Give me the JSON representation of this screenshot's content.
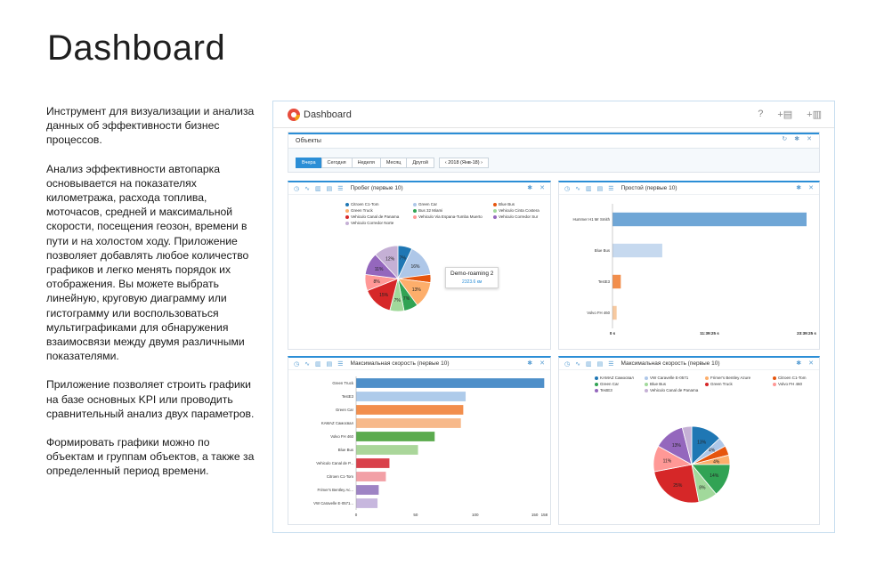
{
  "page": {
    "title": "Dashboard",
    "paragraphs": [
      "Инструмент для визуализации и анализа данных об эффективности бизнес процессов.",
      "Анализ эффективности автопарка основывается на показателях километража, расхода топлива, моточасов, средней и максимальной скорости, посещения геозон, времени в пути и на холостом ходу. Приложение позволяет добавлять любое количество графиков и легко менять порядок их отображения. Вы можете выбрать линейную, круговую диаграмму или гистограмму или воспользоваться мультиграфиками для обнаружения взаимосвязи между двумя различными показателями.",
      "Приложение позволяет строить графики на базе основных KPI или проводить сравнительный анализ двух параметров.",
      "Формировать графики можно по объектам и группам объектов, а также за определенный период времени."
    ]
  },
  "app": {
    "title": "Dashboard",
    "header_icons": [
      "help-icon",
      "add-chart-icon",
      "add-multichart-icon"
    ],
    "objects_panel": {
      "title": "Объекты",
      "tabs": [
        "Вчера",
        "Сегодня",
        "Неделя",
        "Месяц",
        "Другой"
      ],
      "active_tab": "Вчера",
      "date": "‹ 2018 (Янв-18) ›"
    }
  },
  "colors": {
    "accent": "#2b8ed6"
  },
  "chart_data": [
    {
      "type": "pie",
      "title": "Пробег (первые 10)",
      "legend": [
        "Citroen C1-Tom",
        "Green Car",
        "Blue Bus",
        "Green Truck",
        "Bus 32 Miami",
        "Vehiculo Cinta Costera",
        "Vehiculo Canal de Panama",
        "Vehiculo Via Espana-Tumba Muerto",
        "Vehiculo Corredor Sur",
        "Vehiculo Corredor Norte"
      ],
      "colors": [
        "#1f77b4",
        "#aec7e8",
        "#e6550d",
        "#fdae6b",
        "#31a354",
        "#a1d99b",
        "#d62728",
        "#ff9896",
        "#9467bd",
        "#c5b0d5"
      ],
      "values": [
        7,
        16,
        4,
        13,
        7,
        7,
        15,
        8,
        11,
        12
      ],
      "labels": [
        "7%",
        "16%",
        "",
        "13%",
        "7%",
        "7%",
        "15%",
        "8%",
        "11%",
        "12%"
      ],
      "tooltip": {
        "name": "Demo-roaming 2",
        "value": "2323.6 км"
      }
    },
    {
      "type": "bar",
      "orientation": "horizontal",
      "title": "Простой (первые 10)",
      "categories": [
        "Hummer H1 Mr Smith",
        "Blue Bus",
        "TestE3",
        "Volvo FH 460"
      ],
      "values": [
        23.39,
        6.0,
        1.0,
        0.5
      ],
      "colors": [
        "#6fa6d6",
        "#c6d9ef",
        "#f28e4c",
        "#f7c9a0"
      ],
      "xticks": [
        "0 s",
        "11:39:25 s",
        "23:39:25 s"
      ]
    },
    {
      "type": "bar",
      "orientation": "horizontal",
      "title": "Максимальная скорость (первые 10)",
      "categories": [
        "Green Truck",
        "TestE3",
        "Green Car",
        "KAMAZ Самосвал",
        "Volvo FH 460",
        "Blue Bus",
        "Vehiculo Canal de P...",
        "Citroen C1-Tom",
        "Frimer's Bentley Ac...",
        "VW Caravelle E-0571..."
      ],
      "values": [
        158,
        92,
        90,
        88,
        66,
        52,
        28,
        25,
        19,
        18
      ],
      "colors": [
        "#4e8fc9",
        "#aecbea",
        "#f28e4c",
        "#f7b98a",
        "#5bab4e",
        "#aad69a",
        "#d9414b",
        "#f2a0a6",
        "#9e84c4",
        "#c7b7de"
      ],
      "xticks": [
        "0",
        "50",
        "100",
        "150",
        "158"
      ]
    },
    {
      "type": "pie",
      "title": "Максимальная скорость (первые 10)",
      "legend": [
        "KAMAZ Самосвал",
        "VW Caravelle E-0571",
        "Frimer's Bentley Azure",
        "Citroen C1-Tom",
        "Green Car",
        "Blue Bus",
        "Green Truck",
        "Volvo FH 460",
        "TestE3",
        "Vehiculo Canal de Panama"
      ],
      "legend_colors": [
        "#1f77b4",
        "#aec7e8",
        "#fdae6b",
        "#e6550d",
        "#31a354",
        "#a1d99b",
        "#d62728",
        "#ff9896",
        "#9467bd",
        "#c5b0d5"
      ],
      "slice_colors": [
        "#1f77b4",
        "#aec7e8",
        "#e6550d",
        "#fdae6b",
        "#31a354",
        "#a1d99b",
        "#d62728",
        "#ff9896",
        "#9467bd",
        "#c5b0d5"
      ],
      "values": [
        13,
        4,
        4,
        4,
        14,
        8,
        25,
        11,
        13,
        4
      ],
      "labels": [
        "13%",
        "4%",
        "",
        "4%",
        "14%",
        "8%",
        "25%",
        "11%",
        "13%",
        ""
      ]
    }
  ]
}
